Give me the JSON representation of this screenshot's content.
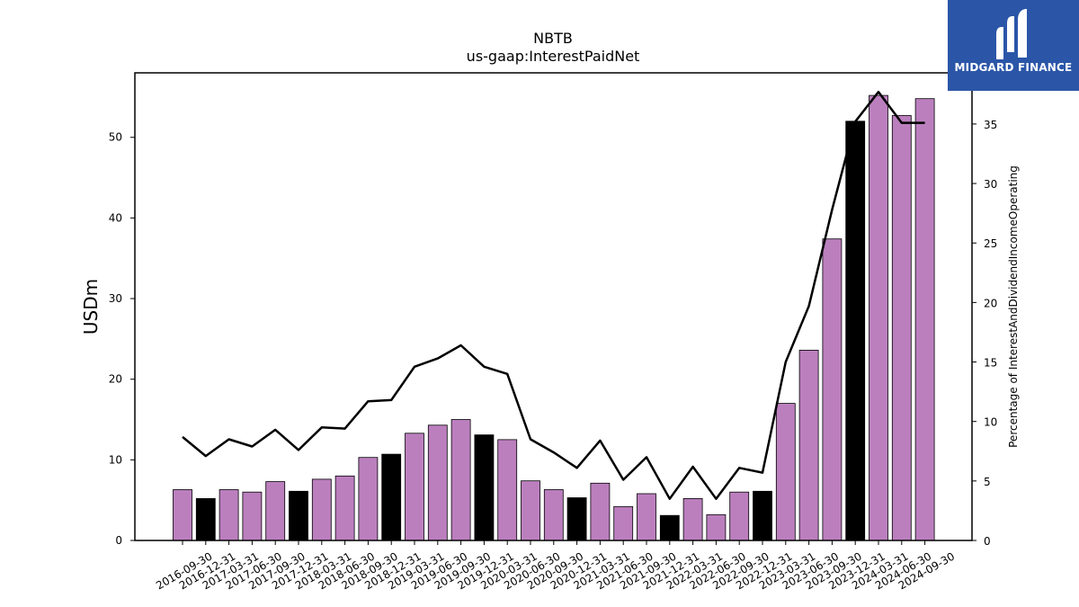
{
  "chart_data": {
    "type": "bar",
    "title": "NBTB",
    "subtitle": "us-gaap:InterestPaidNet",
    "ylabel": "USDm",
    "y2label": "Percentage of InterestAndDividendIncomeOperating",
    "ylim": [
      0,
      58
    ],
    "y2lim": [
      0,
      39.3
    ],
    "yticks": [
      0,
      10,
      20,
      30,
      40,
      50
    ],
    "y2ticks": [
      0,
      5,
      10,
      15,
      20,
      25,
      30,
      35
    ],
    "categories": [
      "2016-09-30",
      "2016-12-31",
      "2017-03-31",
      "2017-06-30",
      "2017-09-30",
      "2017-12-31",
      "2018-03-31",
      "2018-06-30",
      "2018-09-30",
      "2018-12-31",
      "2019-03-31",
      "2019-06-30",
      "2019-09-30",
      "2019-12-31",
      "2020-03-31",
      "2020-06-30",
      "2020-09-30",
      "2020-12-31",
      "2021-03-31",
      "2021-06-30",
      "2021-09-30",
      "2021-12-31",
      "2022-03-31",
      "2022-06-30",
      "2022-09-30",
      "2022-12-31",
      "2023-03-31",
      "2023-06-30",
      "2023-09-30",
      "2023-12-31",
      "2024-03-31",
      "2024-06-30",
      "2024-09-30"
    ],
    "series": [
      {
        "type": "bar",
        "values": [
          6.3,
          5.2,
          6.3,
          6.0,
          7.3,
          6.1,
          7.6,
          8.0,
          10.3,
          10.7,
          13.3,
          14.3,
          15.0,
          13.1,
          12.5,
          7.4,
          6.3,
          5.3,
          7.1,
          4.2,
          5.8,
          3.1,
          5.2,
          3.2,
          6.0,
          6.1,
          17.0,
          23.6,
          37.4,
          52.0,
          55.2,
          52.7,
          54.8
        ],
        "colors": [
          "#bb7fbe",
          "#000000",
          "#bb7fbe",
          "#bb7fbe",
          "#bb7fbe",
          "#000000",
          "#bb7fbe",
          "#bb7fbe",
          "#bb7fbe",
          "#000000",
          "#bb7fbe",
          "#bb7fbe",
          "#bb7fbe",
          "#000000",
          "#bb7fbe",
          "#bb7fbe",
          "#bb7fbe",
          "#000000",
          "#bb7fbe",
          "#bb7fbe",
          "#bb7fbe",
          "#000000",
          "#bb7fbe",
          "#bb7fbe",
          "#bb7fbe",
          "#000000",
          "#bb7fbe",
          "#bb7fbe",
          "#bb7fbe",
          "#000000",
          "#bb7fbe",
          "#bb7fbe",
          "#bb7fbe"
        ]
      },
      {
        "type": "line",
        "axis": "right",
        "color": "#000000",
        "values": [
          8.7,
          7.1,
          8.5,
          7.9,
          9.3,
          7.6,
          9.5,
          9.4,
          11.7,
          11.8,
          14.6,
          15.3,
          16.4,
          14.6,
          14.0,
          8.5,
          7.4,
          6.1,
          8.4,
          5.1,
          7.0,
          3.5,
          6.2,
          3.5,
          6.1,
          5.7,
          15.0,
          19.7,
          27.8,
          35.2,
          37.7,
          35.1,
          35.1
        ]
      }
    ],
    "grid": false,
    "legend": "none"
  },
  "logo": {
    "text": "MIDGARD FINANCE",
    "background": "#2b56a8"
  }
}
